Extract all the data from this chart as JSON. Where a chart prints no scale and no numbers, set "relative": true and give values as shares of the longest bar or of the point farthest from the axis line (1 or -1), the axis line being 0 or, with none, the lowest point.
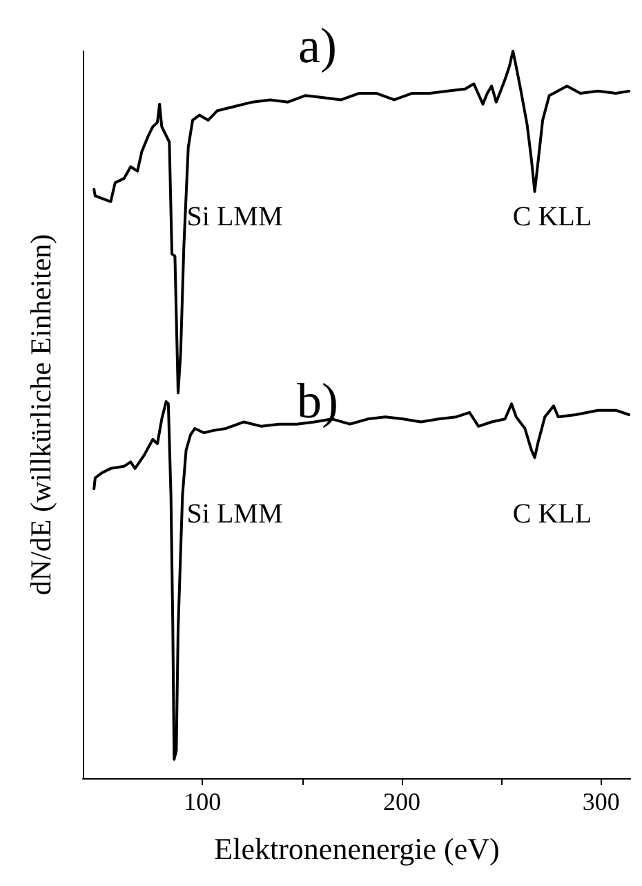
{
  "chart_data": {
    "type": "line",
    "relative": true,
    "xlabel": "Elektronenenergie (eV)",
    "ylabel": "dN/dE (willkürliche Einheiten)",
    "xlim": [
      40,
      315
    ],
    "xticks": [
      100,
      {
        "value": 150,
        "label": null
      },
      200,
      {
        "value": 250,
        "label": null
      },
      300
    ],
    "series": [
      {
        "color": "#000000",
        "x": [
          45.6,
          46.2,
          54.0,
          56.2,
          60.7,
          64.0,
          67.4,
          69.6,
          72.9,
          75.1,
          77.4,
          78.5,
          79.6,
          81.8,
          83.4,
          84.7,
          86.2,
          87.8,
          89.1,
          90.7,
          92.9,
          95.1,
          98.5,
          102.9,
          107.4,
          116.2,
          125.1,
          134.0,
          142.9,
          151.8,
          160.7,
          169.6,
          178.5,
          187.4,
          196.2,
          205.1,
          214.0,
          222.9,
          231.8,
          236.2,
          240.7,
          242.9,
          245.1,
          247.4,
          249.6,
          251.8,
          254.0,
          255.8,
          257.4,
          259.6,
          262.9,
          265.1,
          266.7,
          268.5,
          270.7,
          274.0,
          276.2,
          282.9,
          289.6,
          298.5,
          307.4,
          314.0
        ],
        "values": [
          0.81,
          0.801,
          0.793,
          0.819,
          0.825,
          0.841,
          0.835,
          0.862,
          0.884,
          0.896,
          0.902,
          0.927,
          0.896,
          0.884,
          0.875,
          0.721,
          0.718,
          0.53,
          0.586,
          0.733,
          0.868,
          0.905,
          0.912,
          0.905,
          0.918,
          0.924,
          0.93,
          0.933,
          0.93,
          0.939,
          0.936,
          0.933,
          0.942,
          0.942,
          0.933,
          0.942,
          0.942,
          0.945,
          0.948,
          0.955,
          0.927,
          0.942,
          0.952,
          0.93,
          0.945,
          0.961,
          0.979,
          1.0,
          0.979,
          0.948,
          0.899,
          0.85,
          0.807,
          0.85,
          0.905,
          0.939,
          0.942,
          0.952,
          0.942,
          0.945,
          0.942,
          0.945
        ]
      },
      {
        "color": "#000000",
        "x": [
          45.6,
          46.2,
          49.6,
          54.0,
          60.7,
          64.0,
          66.2,
          70.7,
          75.1,
          77.4,
          79.6,
          81.8,
          82.9,
          84.2,
          85.1,
          85.8,
          86.9,
          87.8,
          90.0,
          91.8,
          94.0,
          96.2,
          100.7,
          105.1,
          111.8,
          120.7,
          129.6,
          138.5,
          147.4,
          156.2,
          165.1,
          174.0,
          182.9,
          191.8,
          200.7,
          209.6,
          218.5,
          227.4,
          234.0,
          238.5,
          245.1,
          251.8,
          255.1,
          257.4,
          261.8,
          265.1,
          266.7,
          268.5,
          271.8,
          276.2,
          278.5,
          287.4,
          298.5,
          307.4,
          314.0
        ],
        "values": [
          0.398,
          0.413,
          0.42,
          0.426,
          0.429,
          0.435,
          0.426,
          0.444,
          0.466,
          0.46,
          0.494,
          0.518,
          0.515,
          0.389,
          0.217,
          0.026,
          0.038,
          0.205,
          0.389,
          0.451,
          0.472,
          0.481,
          0.475,
          0.478,
          0.481,
          0.49,
          0.484,
          0.487,
          0.487,
          0.49,
          0.494,
          0.487,
          0.494,
          0.497,
          0.494,
          0.49,
          0.494,
          0.497,
          0.503,
          0.484,
          0.49,
          0.494,
          0.515,
          0.497,
          0.481,
          0.451,
          0.441,
          0.463,
          0.497,
          0.512,
          0.497,
          0.5,
          0.506,
          0.506,
          0.5
        ]
      }
    ],
    "annotations": [
      "a)",
      "Si LMM",
      "C KLL",
      "b)",
      "Si LMM",
      "C KLL"
    ]
  }
}
